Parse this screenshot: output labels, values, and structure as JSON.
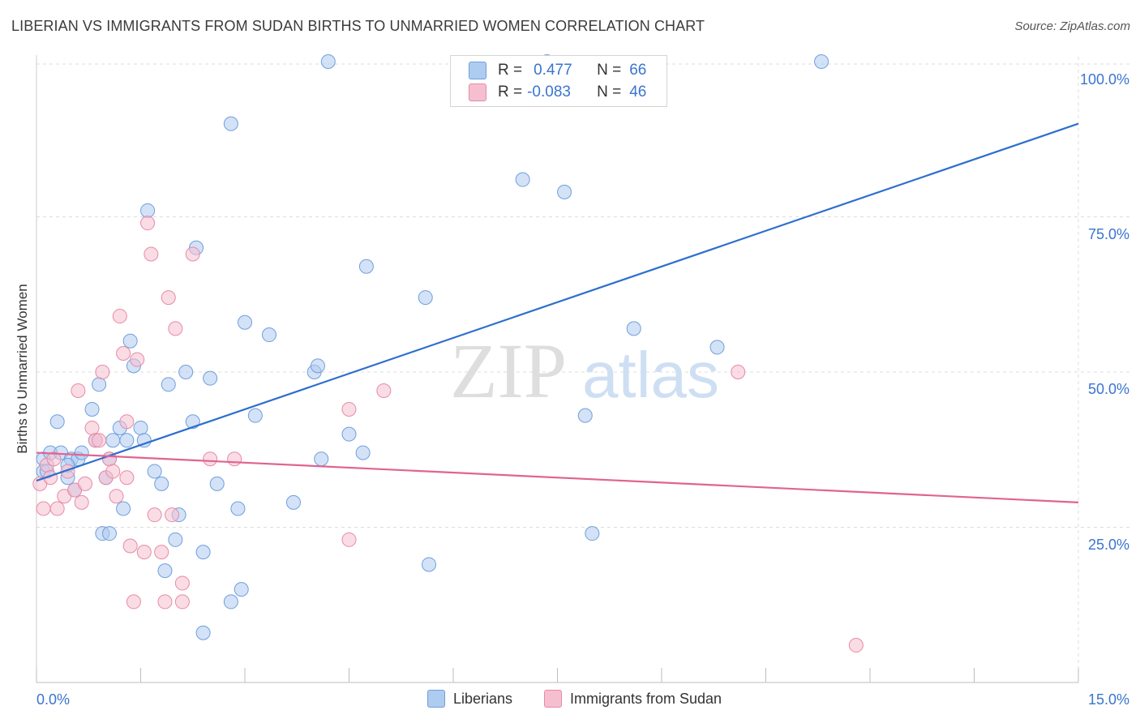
{
  "title": "LIBERIAN VS IMMIGRANTS FROM SUDAN BIRTHS TO UNMARRIED WOMEN CORRELATION CHART",
  "source": "Source: ZipAtlas.com",
  "watermark": {
    "zip": "ZIP",
    "atlas": "atlas"
  },
  "colors": {
    "blue_fill": "#aecbf0",
    "blue_stroke": "#6f9fdc",
    "blue_line": "#2d6fce",
    "pink_fill": "#f6bfd0",
    "pink_stroke": "#e88aa8",
    "pink_line": "#e0648f",
    "accent_text": "#3a74d0",
    "grid": "#dcdcdc"
  },
  "stats": {
    "row1": {
      "r_label": "R =",
      "r_value": "0.477",
      "n_label": "N =",
      "n_value": "66"
    },
    "row2": {
      "r_label": "R =",
      "r_value": "-0.083",
      "n_label": "N =",
      "n_value": "46"
    }
  },
  "legend": {
    "series1": "Liberians",
    "series2": "Immigrants from Sudan"
  },
  "chart_data": {
    "type": "scatter",
    "title": "LIBERIAN VS IMMIGRANTS FROM SUDAN BIRTHS TO UNMARRIED WOMEN CORRELATION CHART",
    "xlabel": "",
    "ylabel": "Births to Unmarried Women",
    "xlim": [
      0,
      15
    ],
    "ylim": [
      0,
      105
    ],
    "x_tick_labels": [
      "0.0%",
      "15.0%"
    ],
    "y_ticks": [
      25,
      50,
      75,
      100
    ],
    "y_tick_labels": [
      "25.0%",
      "50.0%",
      "75.0%",
      "100.0%"
    ],
    "grid": true,
    "legend_position": "bottom",
    "series": [
      {
        "name": "Liberians",
        "color": "#aecbf0",
        "trend": {
          "x": [
            0,
            15
          ],
          "y": [
            32.5,
            90
          ]
        },
        "points": [
          [
            0.1,
            36
          ],
          [
            0.1,
            34
          ],
          [
            0.15,
            34
          ],
          [
            0.2,
            37
          ],
          [
            0.3,
            42
          ],
          [
            0.35,
            37
          ],
          [
            0.45,
            33
          ],
          [
            0.5,
            36
          ],
          [
            0.55,
            31
          ],
          [
            0.6,
            36
          ],
          [
            0.65,
            37
          ],
          [
            0.8,
            44
          ],
          [
            0.85,
            39
          ],
          [
            0.9,
            48
          ],
          [
            0.95,
            24
          ],
          [
            1.0,
            33
          ],
          [
            1.05,
            24
          ],
          [
            1.1,
            39
          ],
          [
            1.2,
            41
          ],
          [
            1.25,
            28
          ],
          [
            1.3,
            39
          ],
          [
            1.35,
            55
          ],
          [
            1.4,
            51
          ],
          [
            1.5,
            41
          ],
          [
            1.55,
            39
          ],
          [
            1.6,
            76
          ],
          [
            1.7,
            34
          ],
          [
            1.8,
            32
          ],
          [
            1.85,
            18
          ],
          [
            1.9,
            48
          ],
          [
            2.0,
            23
          ],
          [
            2.05,
            27
          ],
          [
            2.15,
            50
          ],
          [
            2.25,
            42
          ],
          [
            2.3,
            70
          ],
          [
            2.4,
            21
          ],
          [
            2.5,
            49
          ],
          [
            2.6,
            32
          ],
          [
            2.8,
            90
          ],
          [
            2.9,
            28
          ],
          [
            2.95,
            15
          ],
          [
            3.0,
            58
          ],
          [
            3.15,
            43
          ],
          [
            3.35,
            56
          ],
          [
            3.7,
            29
          ],
          [
            4.0,
            50
          ],
          [
            4.05,
            51
          ],
          [
            4.1,
            36
          ],
          [
            4.2,
            100
          ],
          [
            4.5,
            40
          ],
          [
            4.7,
            37
          ],
          [
            4.75,
            67
          ],
          [
            5.6,
            62
          ],
          [
            5.65,
            19
          ],
          [
            7.0,
            81
          ],
          [
            7.35,
            100
          ],
          [
            7.6,
            79
          ],
          [
            7.9,
            43
          ],
          [
            8.0,
            24
          ],
          [
            8.6,
            57
          ],
          [
            9.8,
            54
          ],
          [
            11.3,
            100
          ],
          [
            0.45,
            35
          ],
          [
            1.05,
            36
          ],
          [
            2.4,
            8
          ],
          [
            2.8,
            13
          ]
        ]
      },
      {
        "name": "Immigrants from Sudan",
        "color": "#f6bfd0",
        "trend": {
          "x": [
            0,
            15
          ],
          "y": [
            37,
            29
          ]
        },
        "points": [
          [
            0.05,
            32
          ],
          [
            0.1,
            28
          ],
          [
            0.15,
            35
          ],
          [
            0.2,
            33
          ],
          [
            0.3,
            28
          ],
          [
            0.4,
            30
          ],
          [
            0.45,
            34
          ],
          [
            0.55,
            31
          ],
          [
            0.6,
            47
          ],
          [
            0.65,
            29
          ],
          [
            0.7,
            32
          ],
          [
            0.8,
            41
          ],
          [
            0.85,
            39
          ],
          [
            0.9,
            39
          ],
          [
            0.95,
            50
          ],
          [
            1.0,
            33
          ],
          [
            1.05,
            36
          ],
          [
            1.1,
            34
          ],
          [
            1.15,
            30
          ],
          [
            1.25,
            53
          ],
          [
            1.2,
            59
          ],
          [
            1.3,
            42
          ],
          [
            1.35,
            22
          ],
          [
            1.4,
            13
          ],
          [
            1.45,
            52
          ],
          [
            1.55,
            21
          ],
          [
            1.6,
            74
          ],
          [
            1.65,
            69
          ],
          [
            1.7,
            27
          ],
          [
            1.8,
            21
          ],
          [
            1.85,
            13
          ],
          [
            1.9,
            62
          ],
          [
            1.95,
            27
          ],
          [
            2.0,
            57
          ],
          [
            2.1,
            13
          ],
          [
            2.1,
            16
          ],
          [
            2.25,
            69
          ],
          [
            2.5,
            36
          ],
          [
            2.85,
            36
          ],
          [
            4.5,
            44
          ],
          [
            4.5,
            23
          ],
          [
            5.0,
            47
          ],
          [
            10.1,
            50
          ],
          [
            11.8,
            6
          ],
          [
            1.3,
            33
          ],
          [
            0.25,
            36
          ]
        ]
      }
    ]
  }
}
